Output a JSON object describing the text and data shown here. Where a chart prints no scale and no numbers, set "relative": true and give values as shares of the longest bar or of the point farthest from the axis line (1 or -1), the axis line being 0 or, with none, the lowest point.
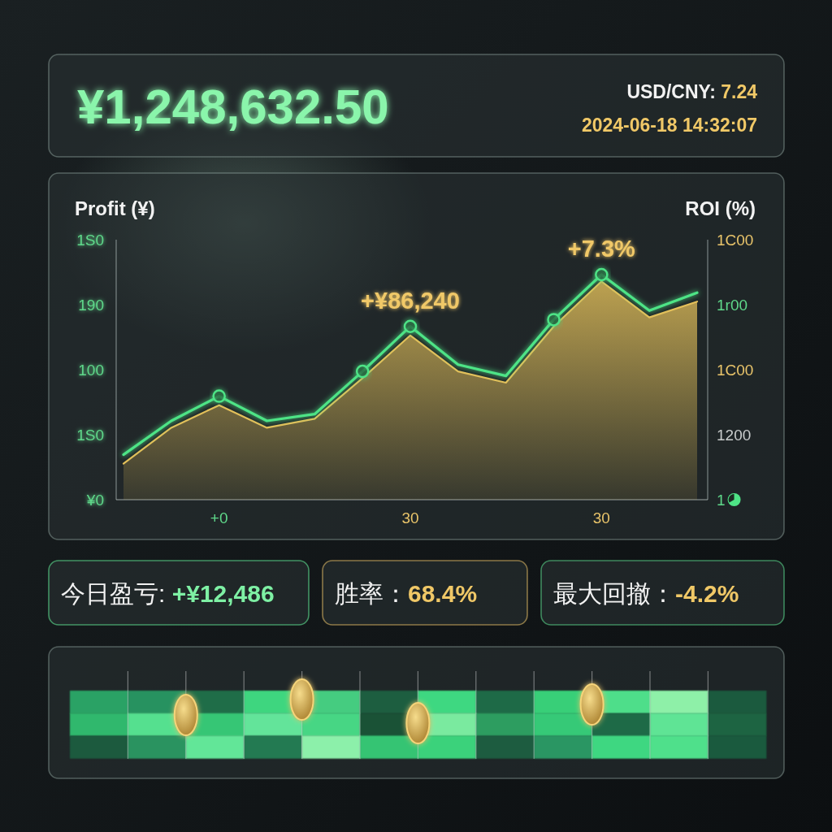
{
  "chart_data": [
    {
      "type": "other",
      "title": "¥1,248,632.50",
      "annotations": [
        "USD/CNY: 7.24",
        "2024-06-18 14:32:07"
      ]
    },
    {
      "type": "line",
      "ylabel": "Profit (¥)",
      "y2label": "ROI (%)",
      "relative": true,
      "categories": [
        null,
        null,
        "+0",
        null,
        null,
        null,
        "30",
        null,
        null,
        null,
        "30",
        null,
        null
      ],
      "series": [
        {
          "type": "area",
          "color": "#e4c05a",
          "values": [
            0.16,
            0.32,
            0.42,
            0.32,
            0.36,
            0.54,
            0.73,
            0.57,
            0.52,
            0.77,
            0.97,
            0.81,
            0.88
          ]
        },
        {
          "type": "line",
          "color": "#4ee486",
          "values": [
            0.2,
            0.35,
            0.46,
            0.35,
            0.38,
            0.57,
            0.77,
            0.6,
            0.55,
            0.8,
            1,
            0.84,
            0.92
          ]
        },
        {
          "type": "scatter",
          "color": "#4ee486",
          "marker": "circle",
          "values": [
            null,
            null,
            0.46,
            null,
            null,
            0.57,
            0.77,
            null,
            null,
            0.8,
            1,
            null,
            null
          ]
        }
      ],
      "annotations": [
        {
          "text": "+¥86,240",
          "x": "30",
          "y": 0.77
        },
        "+7.3%",
        "1S0",
        "190",
        "100",
        "1S0",
        "¥0",
        "1C00",
        "1r00",
        "1C00",
        "1200",
        "1"
      ]
    },
    {
      "type": "other",
      "annotations": [
        "今日盈亏: +¥12,486",
        "胜率：68.4%",
        "最大回撤：-4.2%"
      ]
    }
  ]
}
